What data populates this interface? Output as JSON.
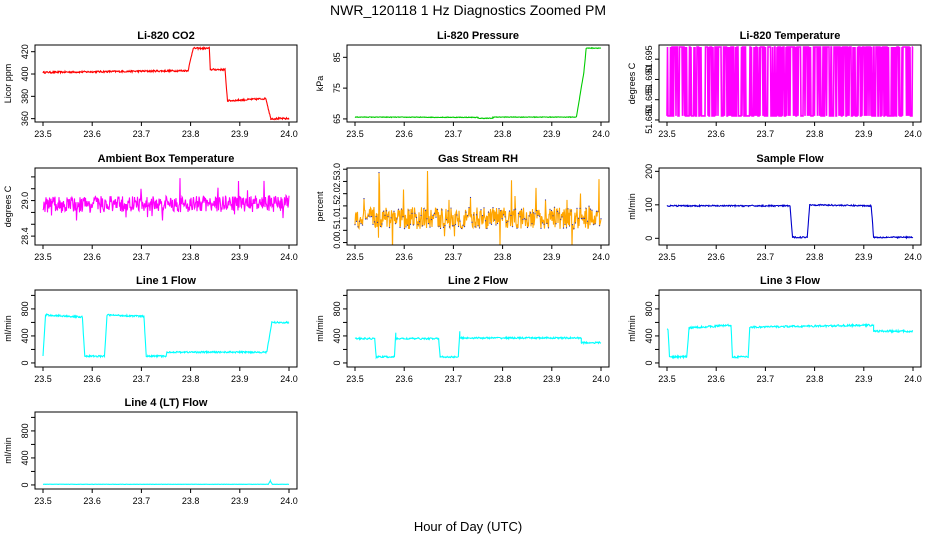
{
  "figure": {
    "title": "NWR_120118  1 Hz Diagnostics Zoomed PM",
    "xlabel": "Hour of Day (UTC)"
  },
  "chart_data": [
    {
      "type": "line",
      "title": "Li-820 CO2",
      "ylabel": "Licor ppm",
      "color": "#ff0000",
      "xlim": [
        23.5,
        24.0
      ],
      "ylim": [
        357,
        426
      ],
      "xticks": [
        "23.5",
        "23.6",
        "23.7",
        "23.8",
        "23.9",
        "24.0"
      ],
      "yticks": [
        360,
        380,
        400,
        420
      ],
      "noise": 0.8,
      "series": [
        {
          "segments": [
            {
              "from": 23.5,
              "to": 23.795,
              "y0": 401.5,
              "y1": 403
            },
            {
              "from": 23.795,
              "to": 23.805,
              "y0": 403,
              "y1": 423
            },
            {
              "from": 23.805,
              "to": 23.838,
              "y0": 423,
              "y1": 423
            },
            {
              "from": 23.838,
              "to": 23.84,
              "y0": 423,
              "y1": 404
            },
            {
              "from": 23.84,
              "to": 23.87,
              "y0": 404,
              "y1": 404
            },
            {
              "from": 23.87,
              "to": 23.875,
              "y0": 404,
              "y1": 376
            },
            {
              "from": 23.875,
              "to": 23.953,
              "y0": 376,
              "y1": 378
            },
            {
              "from": 23.953,
              "to": 23.963,
              "y0": 378,
              "y1": 360
            },
            {
              "from": 23.963,
              "to": 24.0,
              "y0": 360,
              "y1": 360
            }
          ]
        }
      ]
    },
    {
      "type": "line",
      "title": "Li-820 Pressure",
      "ylabel": "kPa",
      "color": "#00cc00",
      "xlim": [
        23.5,
        24.0
      ],
      "ylim": [
        64,
        89
      ],
      "xticks": [
        "23.5",
        "23.6",
        "23.7",
        "23.8",
        "23.9",
        "24.0"
      ],
      "yticks": [
        65,
        75,
        85
      ],
      "noise": 0.1,
      "series": [
        {
          "segments": [
            {
              "from": 23.5,
              "to": 23.75,
              "y0": 65.6,
              "y1": 65.5
            },
            {
              "from": 23.75,
              "to": 23.78,
              "y0": 65.2,
              "y1": 65.2
            },
            {
              "from": 23.78,
              "to": 23.95,
              "y0": 65.6,
              "y1": 65.6
            },
            {
              "from": 23.95,
              "to": 23.965,
              "y0": 65.6,
              "y1": 80
            },
            {
              "from": 23.965,
              "to": 23.97,
              "y0": 80,
              "y1": 88
            },
            {
              "from": 23.97,
              "to": 24.0,
              "y0": 88,
              "y1": 88
            }
          ]
        }
      ]
    },
    {
      "type": "line",
      "title": "Li-820 Temperature",
      "ylabel": "degrees C",
      "color": "#ff00ff",
      "xlim": [
        23.5,
        24.0
      ],
      "ylim": [
        51.6795,
        51.6985
      ],
      "xticks": [
        "23.5",
        "23.6",
        "23.7",
        "23.8",
        "23.9",
        "24.0"
      ],
      "yticks": [
        51.68,
        51.685,
        51.69,
        51.695
      ],
      "ytick_labels": [
        "51.680",
        "51.685",
        "51.690",
        "51.695"
      ],
      "digital": true,
      "levels": [
        51.681,
        51.698
      ],
      "flip_rate": 0.55,
      "series": [
        {
          "segments": [
            {
              "from": 23.5,
              "to": 24.0,
              "y0": 51.681,
              "y1": 51.698
            }
          ]
        }
      ]
    },
    {
      "type": "line",
      "title": "Ambient Box Temperature",
      "ylabel": "degrees C",
      "color": "#ff00ff",
      "xlim": [
        23.5,
        24.0
      ],
      "ylim": [
        28.25,
        29.55
      ],
      "xticks": [
        "23.5",
        "23.6",
        "23.7",
        "23.8",
        "23.9",
        "24.0"
      ],
      "yticks": [
        28.4,
        28.6,
        28.8,
        29.0,
        29.2,
        29.4
      ],
      "ytick_labels": [
        "28.4",
        "",
        "",
        "29.0",
        "",
        ""
      ],
      "noise": 0.14,
      "spikes": 0.3,
      "series": [
        {
          "segments": [
            {
              "from": 23.5,
              "to": 24.0,
              "y0": 28.93,
              "y1": 28.95
            }
          ]
        }
      ]
    },
    {
      "type": "line",
      "title": "Gas Stream RH",
      "ylabel": "percent",
      "color": "#ffa500",
      "point_color": "#3333aa",
      "xlim": [
        23.5,
        24.0
      ],
      "ylim": [
        -0.1,
        3.05
      ],
      "xticks": [
        "23.5",
        "23.6",
        "23.7",
        "23.8",
        "23.9",
        "24.0"
      ],
      "yticks": [
        0.0,
        0.5,
        1.0,
        1.5,
        2.0,
        2.5,
        3.0
      ],
      "ytick_labels": [
        "0.0",
        "0.5",
        "1.0",
        "1.5",
        "2.0",
        "2.5",
        "3.0"
      ],
      "noise": 0.45,
      "spikes": 1.5,
      "series": [
        {
          "segments": [
            {
              "from": 23.5,
              "to": 24.0,
              "y0": 1.0,
              "y1": 1.0
            }
          ]
        }
      ]
    },
    {
      "type": "line",
      "title": "Sample Flow",
      "ylabel": "ml/min",
      "color": "#0000cc",
      "xlim": [
        23.5,
        24.0
      ],
      "ylim": [
        -20,
        210
      ],
      "xticks": [
        "23.5",
        "23.6",
        "23.7",
        "23.8",
        "23.9",
        "24.0"
      ],
      "yticks": [
        0,
        100,
        200
      ],
      "noise": 2,
      "series": [
        {
          "segments": [
            {
              "from": 23.5,
              "to": 23.75,
              "y0": 97,
              "y1": 97
            },
            {
              "from": 23.75,
              "to": 23.755,
              "y0": 97,
              "y1": 3
            },
            {
              "from": 23.755,
              "to": 23.785,
              "y0": 3,
              "y1": 3
            },
            {
              "from": 23.785,
              "to": 23.79,
              "y0": 3,
              "y1": 100
            },
            {
              "from": 23.79,
              "to": 23.915,
              "y0": 100,
              "y1": 97
            },
            {
              "from": 23.915,
              "to": 23.92,
              "y0": 97,
              "y1": 3
            },
            {
              "from": 23.92,
              "to": 24.0,
              "y0": 3,
              "y1": 3
            }
          ]
        }
      ]
    },
    {
      "type": "line",
      "title": "Line 1 Flow",
      "ylabel": "ml/min",
      "color": "#00ffff",
      "xlim": [
        23.5,
        24.0
      ],
      "ylim": [
        -60,
        1080
      ],
      "xticks": [
        "23.5",
        "23.6",
        "23.7",
        "23.8",
        "23.9",
        "24.0"
      ],
      "yticks": [
        0,
        200,
        400,
        600,
        800,
        1000
      ],
      "ytick_labels": [
        "0",
        "",
        "400",
        "",
        "800",
        ""
      ],
      "noise": 12,
      "series": [
        {
          "segments": [
            {
              "from": 23.5,
              "to": 23.505,
              "y0": 100,
              "y1": 700
            },
            {
              "from": 23.505,
              "to": 23.58,
              "y0": 710,
              "y1": 680
            },
            {
              "from": 23.58,
              "to": 23.585,
              "y0": 680,
              "y1": 100
            },
            {
              "from": 23.585,
              "to": 23.625,
              "y0": 100,
              "y1": 100
            },
            {
              "from": 23.625,
              "to": 23.63,
              "y0": 100,
              "y1": 700
            },
            {
              "from": 23.63,
              "to": 23.705,
              "y0": 710,
              "y1": 690
            },
            {
              "from": 23.705,
              "to": 23.71,
              "y0": 690,
              "y1": 100
            },
            {
              "from": 23.71,
              "to": 23.75,
              "y0": 100,
              "y1": 100
            },
            {
              "from": 23.75,
              "to": 23.752,
              "y0": 100,
              "y1": 160
            },
            {
              "from": 23.752,
              "to": 23.955,
              "y0": 160,
              "y1": 160
            },
            {
              "from": 23.955,
              "to": 23.965,
              "y0": 160,
              "y1": 600
            },
            {
              "from": 23.965,
              "to": 24.0,
              "y0": 600,
              "y1": 600
            }
          ]
        }
      ]
    },
    {
      "type": "line",
      "title": "Line 2 Flow",
      "ylabel": "ml/min",
      "color": "#00ffff",
      "xlim": [
        23.5,
        24.0
      ],
      "ylim": [
        -60,
        1080
      ],
      "xticks": [
        "23.5",
        "23.6",
        "23.7",
        "23.8",
        "23.9",
        "24.0"
      ],
      "yticks": [
        0,
        200,
        400,
        600,
        800,
        1000
      ],
      "ytick_labels": [
        "0",
        "",
        "400",
        "",
        "800",
        ""
      ],
      "noise": 12,
      "series": [
        {
          "segments": [
            {
              "from": 23.5,
              "to": 23.54,
              "y0": 360,
              "y1": 360
            },
            {
              "from": 23.54,
              "to": 23.543,
              "y0": 360,
              "y1": 90
            },
            {
              "from": 23.543,
              "to": 23.58,
              "y0": 90,
              "y1": 90
            },
            {
              "from": 23.58,
              "to": 23.583,
              "y0": 90,
              "y1": 440
            },
            {
              "from": 23.583,
              "to": 23.67,
              "y0": 360,
              "y1": 360
            },
            {
              "from": 23.67,
              "to": 23.673,
              "y0": 360,
              "y1": 90
            },
            {
              "from": 23.673,
              "to": 23.71,
              "y0": 90,
              "y1": 90
            },
            {
              "from": 23.71,
              "to": 23.713,
              "y0": 90,
              "y1": 460
            },
            {
              "from": 23.713,
              "to": 23.96,
              "y0": 370,
              "y1": 370
            },
            {
              "from": 23.96,
              "to": 24.0,
              "y0": 300,
              "y1": 300
            }
          ]
        }
      ]
    },
    {
      "type": "line",
      "title": "Line 3 Flow",
      "ylabel": "ml/min",
      "color": "#00ffff",
      "xlim": [
        23.5,
        24.0
      ],
      "ylim": [
        -60,
        1080
      ],
      "xticks": [
        "23.5",
        "23.6",
        "23.7",
        "23.8",
        "23.9",
        "24.0"
      ],
      "yticks": [
        0,
        200,
        400,
        600,
        800,
        1000
      ],
      "ytick_labels": [
        "0",
        "",
        "400",
        "",
        "800",
        ""
      ],
      "noise": 14,
      "series": [
        {
          "segments": [
            {
              "from": 23.5,
              "to": 23.502,
              "y0": 500,
              "y1": 500
            },
            {
              "from": 23.502,
              "to": 23.505,
              "y0": 500,
              "y1": 90
            },
            {
              "from": 23.505,
              "to": 23.54,
              "y0": 90,
              "y1": 90
            },
            {
              "from": 23.54,
              "to": 23.545,
              "y0": 90,
              "y1": 520
            },
            {
              "from": 23.545,
              "to": 23.63,
              "y0": 520,
              "y1": 560
            },
            {
              "from": 23.63,
              "to": 23.633,
              "y0": 560,
              "y1": 90
            },
            {
              "from": 23.633,
              "to": 23.665,
              "y0": 90,
              "y1": 90
            },
            {
              "from": 23.665,
              "to": 23.668,
              "y0": 90,
              "y1": 520
            },
            {
              "from": 23.668,
              "to": 23.92,
              "y0": 530,
              "y1": 560
            },
            {
              "from": 23.92,
              "to": 24.0,
              "y0": 470,
              "y1": 470
            }
          ]
        }
      ]
    },
    {
      "type": "line",
      "title": "Line 4 (LT) Flow",
      "ylabel": "ml/min",
      "color": "#00ffff",
      "xlim": [
        23.5,
        24.0
      ],
      "ylim": [
        -60,
        1080
      ],
      "xticks": [
        "23.5",
        "23.6",
        "23.7",
        "23.8",
        "23.9",
        "24.0"
      ],
      "yticks": [
        0,
        200,
        400,
        600,
        800,
        1000
      ],
      "ytick_labels": [
        "0",
        "",
        "400",
        "",
        "800",
        ""
      ],
      "noise": 1.5,
      "series": [
        {
          "segments": [
            {
              "from": 23.5,
              "to": 23.958,
              "y0": 10,
              "y1": 10
            },
            {
              "from": 23.958,
              "to": 23.962,
              "y0": 10,
              "y1": 60
            },
            {
              "from": 23.962,
              "to": 23.966,
              "y0": 60,
              "y1": 10
            },
            {
              "from": 23.966,
              "to": 24.0,
              "y0": 10,
              "y1": 10
            }
          ]
        }
      ]
    }
  ]
}
